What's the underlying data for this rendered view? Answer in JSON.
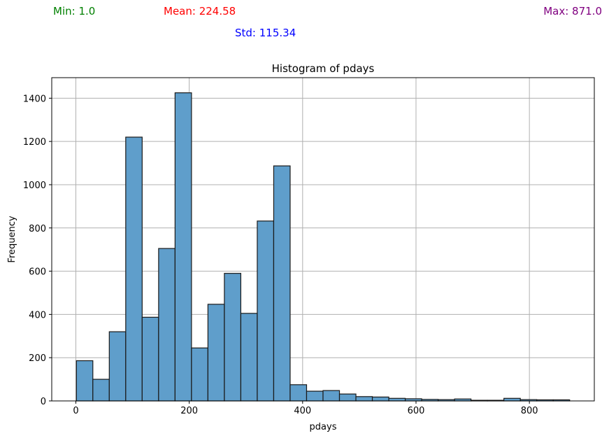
{
  "stats": {
    "min": "Min: 1.0",
    "mean": "Mean: 224.58",
    "max": "Max: 871.0",
    "std": "Std: 115.34"
  },
  "colors": {
    "bar_fill": "#5f9ecb",
    "bar_edge": "#1a1a1a",
    "grid": "#b0b0b0",
    "min": "#008000",
    "mean": "#ff0000",
    "max": "#800080",
    "std": "#0000ff"
  },
  "chart_data": {
    "type": "bar",
    "title": "Histogram of pdays",
    "xlabel": "pdays",
    "ylabel": "Frequency",
    "xlim": [
      -42.5,
      914.5
    ],
    "ylim": [
      0,
      1495
    ],
    "x_ticks": [
      0,
      200,
      400,
      600,
      800
    ],
    "y_ticks": [
      0,
      200,
      400,
      600,
      800,
      1000,
      1200,
      1400
    ],
    "grid": true,
    "bin_range": [
      1,
      871
    ],
    "bins": 30,
    "values": [
      186,
      100,
      320,
      1220,
      387,
      705,
      1425,
      245,
      447,
      590,
      405,
      832,
      1087,
      75,
      45,
      48,
      32,
      20,
      18,
      12,
      10,
      7,
      6,
      9,
      3,
      3,
      12,
      6,
      5,
      5
    ]
  }
}
